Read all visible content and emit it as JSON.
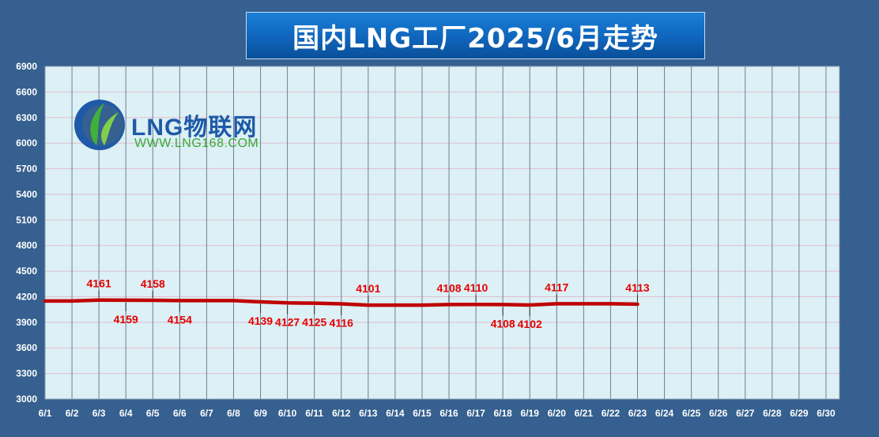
{
  "title": "国内LNG工厂2025/6月走势",
  "logo": {
    "main_text": "LNG物联网",
    "url_text": "WWW.LNG168.COM"
  },
  "colors": {
    "background": "#35608f",
    "plot_background": "#dcf0f5",
    "series_line": "#c00000",
    "data_label": "#e60000",
    "title_bg": "#0f65bb"
  },
  "chart_data": {
    "type": "line",
    "title": "国内LNG工厂2025/6月走势",
    "xlabel": "",
    "ylabel": "",
    "ylim": [
      3000,
      6900
    ],
    "yticks": [
      3000,
      3300,
      3600,
      3900,
      4200,
      4500,
      4800,
      5100,
      5400,
      5700,
      6000,
      6300,
      6600,
      6900
    ],
    "grid": true,
    "legend": "none",
    "categories": [
      "6/1",
      "6/2",
      "6/3",
      "6/4",
      "6/5",
      "6/6",
      "6/7",
      "6/8",
      "6/9",
      "6/10",
      "6/11",
      "6/12",
      "6/13",
      "6/14",
      "6/15",
      "6/16",
      "6/17",
      "6/18",
      "6/19",
      "6/20",
      "6/21",
      "6/22",
      "6/23",
      "6/24",
      "6/25",
      "6/26",
      "6/27",
      "6/28",
      "6/29",
      "6/30"
    ],
    "series": [
      {
        "values": [
          4150,
          4150,
          4161,
          4159,
          4158,
          4154,
          4154,
          4154,
          4139,
          4127,
          4125,
          4116,
          4101,
          4101,
          4101,
          4108,
          4110,
          4108,
          4102,
          4117,
          4117,
          4117,
          4113,
          null,
          null,
          null,
          null,
          null,
          null,
          null
        ]
      }
    ],
    "data_labels": [
      {
        "index": 2,
        "text": "4161",
        "pos": "above"
      },
      {
        "index": 3,
        "text": "4159",
        "pos": "below"
      },
      {
        "index": 4,
        "text": "4158",
        "pos": "above"
      },
      {
        "index": 5,
        "text": "4154",
        "pos": "below"
      },
      {
        "index": 8,
        "text": "4139",
        "pos": "below"
      },
      {
        "index": 9,
        "text": "4127",
        "pos": "below"
      },
      {
        "index": 10,
        "text": "4125",
        "pos": "below"
      },
      {
        "index": 11,
        "text": "4116",
        "pos": "below"
      },
      {
        "index": 12,
        "text": "4101",
        "pos": "above"
      },
      {
        "index": 15,
        "text": "4108",
        "pos": "above"
      },
      {
        "index": 16,
        "text": "4110",
        "pos": "above"
      },
      {
        "index": 17,
        "text": "4108",
        "pos": "below"
      },
      {
        "index": 18,
        "text": "4102",
        "pos": "below"
      },
      {
        "index": 19,
        "text": "4117",
        "pos": "above"
      },
      {
        "index": 22,
        "text": "4113",
        "pos": "above"
      }
    ]
  }
}
